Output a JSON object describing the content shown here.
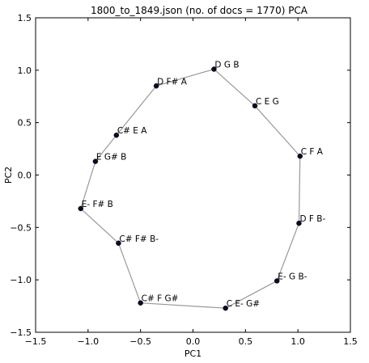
{
  "chart_data": {
    "type": "scatter",
    "title": "1800_to_1849.json (no. of docs = 1770) PCA",
    "xlabel": "PC1",
    "ylabel": "PC2",
    "xlim": [
      -1.5,
      1.5
    ],
    "ylim": [
      -1.5,
      1.5
    ],
    "x_ticks": [
      -1.5,
      -1.0,
      -0.5,
      0.0,
      0.5,
      1.0,
      1.5
    ],
    "y_ticks": [
      -1.5,
      -1.0,
      -0.5,
      0.0,
      0.5,
      1.0,
      1.5
    ],
    "x_tick_labels": [
      "−1.5",
      "−1.0",
      "−0.5",
      "0.0",
      "0.5",
      "1.0",
      "1.5"
    ],
    "y_tick_labels": [
      "−1.5",
      "−1.0",
      "−0.5",
      "0.0",
      "0.5",
      "1.0",
      "1.5"
    ],
    "grid": false,
    "connected": true,
    "points": [
      {
        "label": "D G B",
        "x": 0.2,
        "y": 1.01
      },
      {
        "label": "C E G",
        "x": 0.59,
        "y": 0.66
      },
      {
        "label": "C F A",
        "x": 1.02,
        "y": 0.18
      },
      {
        "label": "D F B-",
        "x": 1.01,
        "y": -0.46
      },
      {
        "label": "E- G B-",
        "x": 0.8,
        "y": -1.01
      },
      {
        "label": "C E- G#",
        "x": 0.31,
        "y": -1.27
      },
      {
        "label": "C# F G#",
        "x": -0.5,
        "y": -1.22
      },
      {
        "label": "C# F# B-",
        "x": -0.71,
        "y": -0.65
      },
      {
        "label": "E- F# B",
        "x": -1.07,
        "y": -0.32
      },
      {
        "label": "E G# B",
        "x": -0.93,
        "y": 0.13
      },
      {
        "label": "C# E A",
        "x": -0.73,
        "y": 0.38
      },
      {
        "label": "D F# A",
        "x": -0.35,
        "y": 0.85
      }
    ],
    "colors": {
      "marker": "#0a0a2a",
      "marker_edge": "#000000",
      "line": "#999999",
      "axes": "#000000"
    }
  }
}
